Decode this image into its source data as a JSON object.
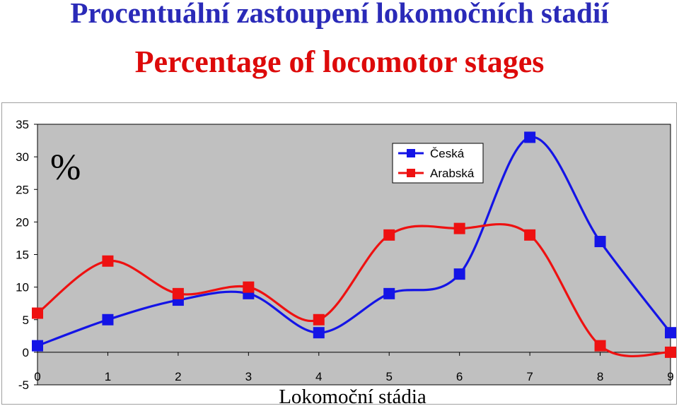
{
  "header": {
    "title_cz": "Procentuální zastoupení lokomočních stadií",
    "title_en": "Percentage of locomotor stages"
  },
  "chart_data": {
    "type": "line",
    "smooth": true,
    "x": [
      0,
      1,
      2,
      3,
      4,
      5,
      6,
      7,
      8,
      9
    ],
    "series": [
      {
        "name": "Česká",
        "color": "#1414e6",
        "values": [
          1,
          5,
          8,
          9,
          3,
          9,
          12,
          33,
          17,
          3
        ]
      },
      {
        "name": "Arabská",
        "color": "#ee1111",
        "values": [
          6,
          14,
          9,
          10,
          5,
          18,
          19,
          18,
          1,
          0
        ]
      }
    ],
    "ylabel": "%",
    "xlabel": "Lokomoční stádia",
    "xlim": [
      0,
      9
    ],
    "ylim": [
      -5,
      35
    ],
    "yticks": [
      35,
      30,
      25,
      20,
      15,
      10,
      5,
      0,
      -5
    ],
    "xticks": [
      0,
      1,
      2,
      3,
      4,
      5,
      6,
      7,
      8,
      9
    ],
    "grid": false,
    "plot_background": "#c0c0c0",
    "legend": "top-right"
  }
}
